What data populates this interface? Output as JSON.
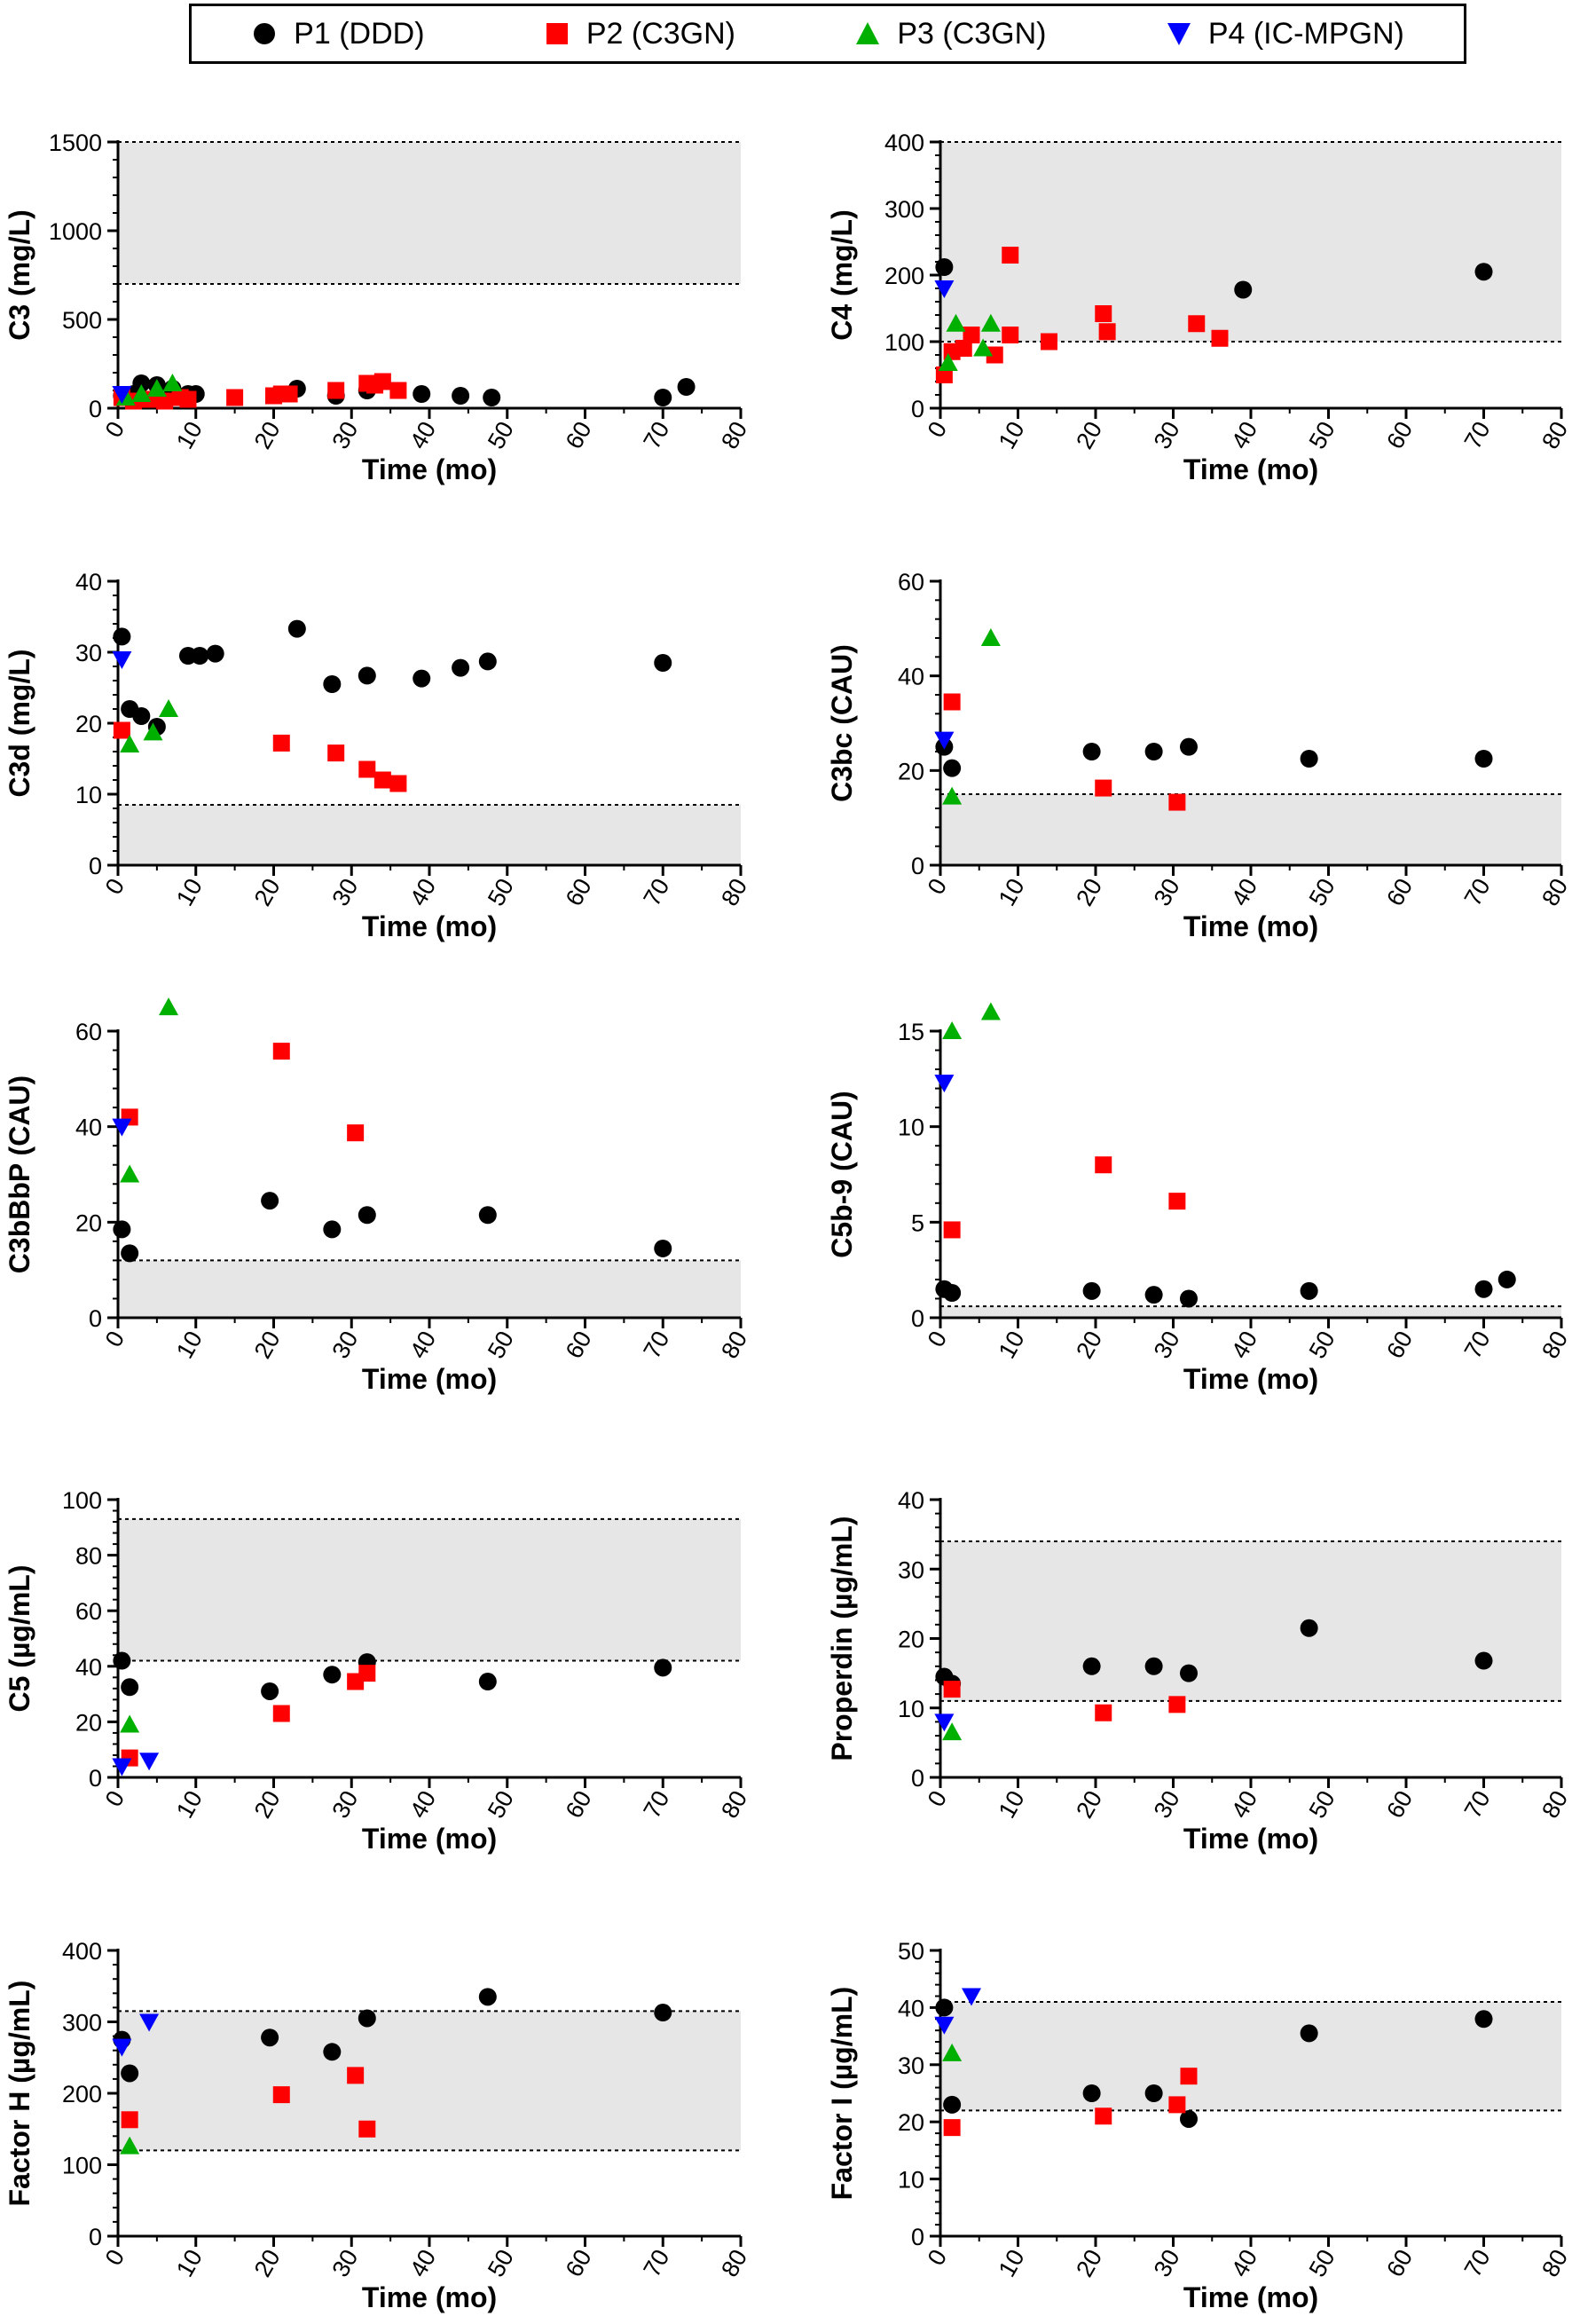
{
  "legend": [
    {
      "label": "P1 (DDD)",
      "series": "P1",
      "color": "#000000",
      "shape": "circle"
    },
    {
      "label": "P2 (C3GN)",
      "series": "P2",
      "color": "#ff0000",
      "shape": "square"
    },
    {
      "label": "P3 (C3GN)",
      "series": "P3",
      "color": "#00b000",
      "shape": "triangle-up"
    },
    {
      "label": "P4 (IC-MPGN)",
      "series": "P4",
      "color": "#0000ff",
      "shape": "triangle-down"
    }
  ],
  "chart_data": [
    {
      "type": "scatter",
      "id": "c3",
      "title": "",
      "xlabel": "Time (mo)",
      "ylabel": "C3 (mg/L)",
      "xlim": [
        0,
        80
      ],
      "ylim": [
        0,
        1500
      ],
      "yticks": [
        0,
        500,
        1000,
        1500
      ],
      "xticks": [
        0,
        10,
        20,
        30,
        40,
        50,
        60,
        70,
        80
      ],
      "ref_band": [
        700,
        1500
      ],
      "series": [
        {
          "name": "P1",
          "x": [
            0.5,
            2,
            3,
            5,
            7,
            9,
            10,
            23,
            28,
            32,
            39,
            44,
            48,
            70,
            73
          ],
          "y": [
            70,
            80,
            140,
            130,
            110,
            80,
            80,
            110,
            70,
            100,
            80,
            70,
            60,
            60,
            120
          ]
        },
        {
          "name": "P2",
          "x": [
            0.5,
            2,
            4,
            6,
            8,
            9,
            15,
            20,
            21,
            22,
            28,
            32,
            33,
            34,
            36
          ],
          "y": [
            60,
            40,
            50,
            40,
            60,
            50,
            60,
            70,
            80,
            80,
            100,
            140,
            130,
            150,
            100
          ]
        },
        {
          "name": "P3",
          "x": [
            1,
            3,
            5,
            7
          ],
          "y": [
            60,
            80,
            110,
            140
          ]
        },
        {
          "name": "P4",
          "x": [
            0.5
          ],
          "y": [
            80
          ]
        }
      ]
    },
    {
      "type": "scatter",
      "id": "c4",
      "title": "",
      "xlabel": "Time (mo)",
      "ylabel": "C4 (mg/L)",
      "xlim": [
        0,
        80
      ],
      "ylim": [
        0,
        400
      ],
      "yticks": [
        0,
        100,
        200,
        300,
        400
      ],
      "xticks": [
        0,
        10,
        20,
        30,
        40,
        50,
        60,
        70,
        80
      ],
      "ref_band": [
        100,
        400
      ],
      "series": [
        {
          "name": "P1",
          "x": [
            0.5,
            39,
            70
          ],
          "y": [
            212,
            178,
            205
          ]
        },
        {
          "name": "P2",
          "x": [
            0.5,
            1.5,
            3,
            4,
            7,
            9,
            9,
            14,
            21,
            21.5,
            33,
            36
          ],
          "y": [
            50,
            85,
            90,
            110,
            80,
            230,
            110,
            100,
            142,
            115,
            127,
            105
          ]
        },
        {
          "name": "P3",
          "x": [
            1,
            2,
            5.5,
            6.5
          ],
          "y": [
            68,
            127,
            90,
            127
          ]
        },
        {
          "name": "P4",
          "x": [
            0.5
          ],
          "y": [
            180
          ]
        }
      ]
    },
    {
      "type": "scatter",
      "id": "c3d",
      "title": "",
      "xlabel": "Time (mo)",
      "ylabel": "C3d (mg/L)",
      "xlim": [
        0,
        80
      ],
      "ylim": [
        0,
        40
      ],
      "yticks": [
        0,
        10,
        20,
        30,
        40
      ],
      "xticks": [
        0,
        10,
        20,
        30,
        40,
        50,
        60,
        70,
        80
      ],
      "ref_band": [
        0,
        8.5
      ],
      "series": [
        {
          "name": "P1",
          "x": [
            0.5,
            1.5,
            3,
            5,
            9,
            10.5,
            12.5,
            23,
            27.5,
            32,
            39,
            44,
            47.5,
            70
          ],
          "y": [
            32.2,
            22,
            21,
            19.5,
            29.5,
            29.5,
            29.8,
            33.3,
            25.5,
            26.7,
            26.3,
            27.8,
            28.7,
            28.5
          ]
        },
        {
          "name": "P2",
          "x": [
            0.5,
            21,
            28,
            32,
            34,
            36
          ],
          "y": [
            19,
            17.2,
            15.8,
            13.5,
            12,
            11.5
          ]
        },
        {
          "name": "P3",
          "x": [
            1.5,
            4.5,
            6.5
          ],
          "y": [
            17,
            18.7,
            22
          ]
        },
        {
          "name": "P4",
          "x": [
            0.5
          ],
          "y": [
            29
          ]
        }
      ]
    },
    {
      "type": "scatter",
      "id": "c3bc",
      "title": "",
      "xlabel": "Time (mo)",
      "ylabel": "C3bc (CAU)",
      "xlim": [
        0,
        80
      ],
      "ylim": [
        0,
        60
      ],
      "yticks": [
        0,
        20,
        40,
        60
      ],
      "xticks": [
        0,
        10,
        20,
        30,
        40,
        50,
        60,
        70,
        80
      ],
      "ref_band": [
        0,
        15
      ],
      "series": [
        {
          "name": "P1",
          "x": [
            0.5,
            1.5,
            19.5,
            27.5,
            32,
            47.5,
            70
          ],
          "y": [
            25,
            20.5,
            24,
            24,
            25,
            22.5,
            22.5
          ]
        },
        {
          "name": "P2",
          "x": [
            1.5,
            21,
            30.5
          ],
          "y": [
            34.5,
            16.3,
            13.3
          ]
        },
        {
          "name": "P3",
          "x": [
            1.5,
            6.5
          ],
          "y": [
            14.5,
            48
          ]
        },
        {
          "name": "P4",
          "x": [
            0.5
          ],
          "y": [
            26.5
          ]
        }
      ]
    },
    {
      "type": "scatter",
      "id": "c3bbbp",
      "title": "",
      "xlabel": "Time (mo)",
      "ylabel": "C3bBbP (CAU)",
      "xlim": [
        0,
        80
      ],
      "ylim": [
        0,
        65
      ],
      "yticks": [
        0,
        20,
        40,
        60
      ],
      "xticks": [
        0,
        10,
        20,
        30,
        40,
        50,
        60,
        70,
        80
      ],
      "ref_band": [
        0,
        12
      ],
      "series": [
        {
          "name": "P1",
          "x": [
            0.5,
            1.5,
            19.5,
            27.5,
            32,
            47.5,
            70
          ],
          "y": [
            18.5,
            13.5,
            24.5,
            18.5,
            21.5,
            21.5,
            14.5
          ]
        },
        {
          "name": "P2",
          "x": [
            1.5,
            21,
            30.5
          ],
          "y": [
            42,
            55.8,
            38.7
          ]
        },
        {
          "name": "P3",
          "x": [
            1.5,
            6.5
          ],
          "y": [
            30,
            65
          ]
        },
        {
          "name": "P4",
          "x": [
            0.5
          ],
          "y": [
            40
          ]
        }
      ]
    },
    {
      "type": "scatter",
      "id": "c5b9",
      "title": "",
      "xlabel": "Time (mo)",
      "ylabel": "C5b-9 (CAU)",
      "xlim": [
        0,
        80
      ],
      "ylim": [
        0,
        17
      ],
      "yticks": [
        0,
        5,
        10,
        15
      ],
      "xticks": [
        0,
        10,
        20,
        30,
        40,
        50,
        60,
        70,
        80
      ],
      "ref_band": [
        0,
        0.6
      ],
      "series": [
        {
          "name": "P1",
          "x": [
            0.5,
            1.5,
            19.5,
            27.5,
            32,
            47.5,
            70,
            73
          ],
          "y": [
            1.5,
            1.3,
            1.4,
            1.2,
            1.0,
            1.4,
            1.5,
            2.0
          ]
        },
        {
          "name": "P2",
          "x": [
            1.5,
            21,
            30.5
          ],
          "y": [
            4.6,
            8.0,
            6.1
          ]
        },
        {
          "name": "P3",
          "x": [
            1.5,
            6.5
          ],
          "y": [
            15,
            16
          ]
        },
        {
          "name": "P4",
          "x": [
            0.5
          ],
          "y": [
            12.3
          ]
        }
      ]
    },
    {
      "type": "scatter",
      "id": "c5",
      "title": "",
      "xlabel": "Time (mo)",
      "ylabel": "C5 (µg/mL)",
      "xlim": [
        0,
        80
      ],
      "ylim": [
        0,
        100
      ],
      "yticks": [
        0,
        20,
        40,
        60,
        80,
        100
      ],
      "xticks": [
        0,
        10,
        20,
        30,
        40,
        50,
        60,
        70,
        80
      ],
      "ref_band": [
        42,
        93
      ],
      "series": [
        {
          "name": "P1",
          "x": [
            0.5,
            1.5,
            19.5,
            27.5,
            32,
            47.5,
            70
          ],
          "y": [
            42,
            32.5,
            31,
            37,
            41.5,
            34.5,
            39.5
          ]
        },
        {
          "name": "P2",
          "x": [
            1.5,
            21,
            30.5,
            32
          ],
          "y": [
            7,
            23,
            34.5,
            37.5
          ]
        },
        {
          "name": "P3",
          "x": [
            1.5
          ],
          "y": [
            19
          ]
        },
        {
          "name": "P4",
          "x": [
            0.5,
            4
          ],
          "y": [
            4,
            6
          ]
        }
      ]
    },
    {
      "type": "scatter",
      "id": "properdin",
      "title": "",
      "xlabel": "Time (mo)",
      "ylabel": "Properdin (µg/mL)",
      "xlim": [
        0,
        80
      ],
      "ylim": [
        0,
        40
      ],
      "yticks": [
        0,
        10,
        20,
        30,
        40
      ],
      "xticks": [
        0,
        10,
        20,
        30,
        40,
        50,
        60,
        70,
        80
      ],
      "ref_band": [
        11,
        34
      ],
      "series": [
        {
          "name": "P1",
          "x": [
            0.5,
            1.5,
            19.5,
            27.5,
            32,
            47.5,
            70
          ],
          "y": [
            14.5,
            13.5,
            16,
            16,
            15,
            21.5,
            16.8
          ]
        },
        {
          "name": "P2",
          "x": [
            1.5,
            21,
            30.5
          ],
          "y": [
            12.7,
            9.3,
            10.5
          ]
        },
        {
          "name": "P3",
          "x": [
            1.5
          ],
          "y": [
            6.5
          ]
        },
        {
          "name": "P4",
          "x": [
            0.5
          ],
          "y": [
            8
          ]
        }
      ]
    },
    {
      "type": "scatter",
      "id": "factorh",
      "title": "",
      "xlabel": "Time (mo)",
      "ylabel": "Factor H (µg/mL)",
      "xlim": [
        0,
        80
      ],
      "ylim": [
        0,
        400
      ],
      "yticks": [
        0,
        100,
        200,
        300,
        400
      ],
      "xticks": [
        0,
        10,
        20,
        30,
        40,
        50,
        60,
        70,
        80
      ],
      "ref_band": [
        120,
        315
      ],
      "series": [
        {
          "name": "P1",
          "x": [
            0.5,
            1.5,
            19.5,
            27.5,
            32,
            47.5,
            70
          ],
          "y": [
            275,
            228,
            278,
            258,
            305,
            335,
            313
          ]
        },
        {
          "name": "P2",
          "x": [
            1.5,
            21,
            30.5,
            32
          ],
          "y": [
            163,
            198,
            225,
            150
          ]
        },
        {
          "name": "P3",
          "x": [
            1.5
          ],
          "y": [
            126
          ]
        },
        {
          "name": "P4",
          "x": [
            0.5,
            4
          ],
          "y": [
            265,
            300
          ]
        }
      ]
    },
    {
      "type": "scatter",
      "id": "factori",
      "title": "",
      "xlabel": "Time (mo)",
      "ylabel": "Factor I (µg/mL)",
      "xlim": [
        0,
        80
      ],
      "ylim": [
        0,
        50
      ],
      "yticks": [
        0,
        10,
        20,
        30,
        40,
        50
      ],
      "xticks": [
        0,
        10,
        20,
        30,
        40,
        50,
        60,
        70,
        80
      ],
      "ref_band": [
        22,
        41
      ],
      "series": [
        {
          "name": "P1",
          "x": [
            0.5,
            1.5,
            19.5,
            27.5,
            32,
            47.5,
            70
          ],
          "y": [
            40,
            23,
            25,
            25,
            20.5,
            35.5,
            38
          ]
        },
        {
          "name": "P2",
          "x": [
            1.5,
            21,
            30.5,
            32
          ],
          "y": [
            19,
            21,
            23,
            28
          ]
        },
        {
          "name": "P3",
          "x": [
            1.5
          ],
          "y": [
            32
          ]
        },
        {
          "name": "P4",
          "x": [
            0.5,
            4
          ],
          "y": [
            37,
            42
          ]
        }
      ]
    }
  ]
}
